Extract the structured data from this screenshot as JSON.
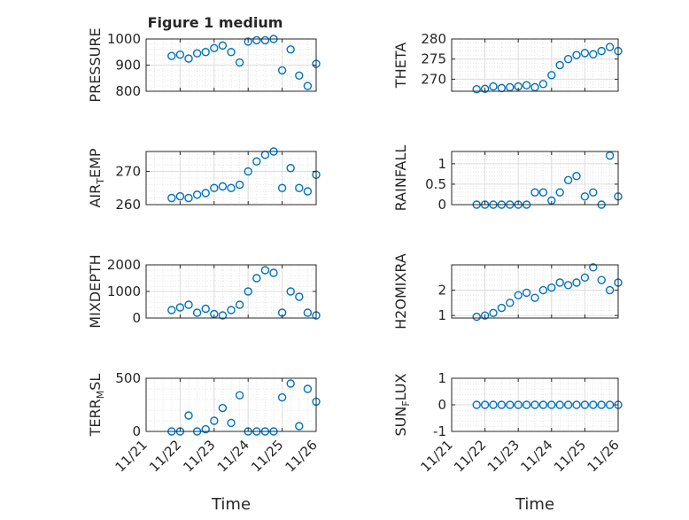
{
  "figure": {
    "title": "Figure 1 medium",
    "series_color": "#0072BD",
    "grid": "on (major and minor, dotted)",
    "x_axis_label": "Time",
    "x_axis_range": [
      "11/21",
      "11/26"
    ],
    "x_tick_labels": [
      "11/21",
      "11/22",
      "11/23",
      "11/24",
      "11/25",
      "11/26"
    ]
  },
  "chart_data": [
    {
      "type": "scatter",
      "ylabel": "PRESSURE",
      "ylim": [
        800,
        1000
      ],
      "yticks": [
        800,
        900,
        1000
      ],
      "xlim": [
        "11/21",
        "11/26"
      ],
      "x": [
        "11/21 18:00",
        "11/22 00:00",
        "11/22 06:00",
        "11/22 12:00",
        "11/22 18:00",
        "11/23 00:00",
        "11/23 06:00",
        "11/23 12:00",
        "11/23 18:00",
        "11/24 00:00",
        "11/24 06:00",
        "11/24 12:00",
        "11/24 18:00",
        "11/25 00:00",
        "11/25 06:00",
        "11/25 12:00",
        "11/25 18:00",
        "11/26 00:00"
      ],
      "y": [
        935,
        940,
        925,
        945,
        950,
        965,
        975,
        950,
        910,
        990,
        995,
        995,
        1000,
        880,
        960,
        860,
        820,
        905
      ]
    },
    {
      "type": "scatter",
      "ylabel": "THETA",
      "ylim": [
        267,
        280
      ],
      "yticks": [
        270,
        275,
        280
      ],
      "xlim": [
        "11/21",
        "11/26"
      ],
      "x": [
        "11/21 18:00",
        "11/22 00:00",
        "11/22 06:00",
        "11/22 12:00",
        "11/22 18:00",
        "11/23 00:00",
        "11/23 06:00",
        "11/23 12:00",
        "11/23 18:00",
        "11/24 00:00",
        "11/24 06:00",
        "11/24 12:00",
        "11/24 18:00",
        "11/25 00:00",
        "11/25 06:00",
        "11/25 12:00",
        "11/25 18:00",
        "11/26 00:00"
      ],
      "y": [
        267.5,
        267.6,
        268.2,
        267.8,
        268.0,
        268.2,
        268.5,
        268.0,
        268.8,
        271.0,
        273.5,
        275.0,
        276.0,
        276.5,
        276.2,
        277.0,
        278.0,
        277.0
      ]
    },
    {
      "type": "scatter",
      "ylabel": "AIR_TEMP",
      "ylim": [
        260,
        276
      ],
      "yticks": [
        260,
        270
      ],
      "xlim": [
        "11/21",
        "11/26"
      ],
      "x": [
        "11/21 18:00",
        "11/22 00:00",
        "11/22 06:00",
        "11/22 12:00",
        "11/22 18:00",
        "11/23 00:00",
        "11/23 06:00",
        "11/23 12:00",
        "11/23 18:00",
        "11/24 00:00",
        "11/24 06:00",
        "11/24 12:00",
        "11/24 18:00",
        "11/25 00:00",
        "11/25 06:00",
        "11/25 12:00",
        "11/25 18:00",
        "11/26 00:00"
      ],
      "y": [
        262,
        262.5,
        262,
        263,
        263.5,
        265,
        265.5,
        265,
        266,
        270,
        273,
        275,
        276,
        265,
        271,
        265,
        264,
        269
      ]
    },
    {
      "type": "scatter",
      "ylabel": "RAINFALL",
      "ylim": [
        0,
        1.3
      ],
      "yticks": [
        0,
        0.5,
        1
      ],
      "xlim": [
        "11/21",
        "11/26"
      ],
      "x": [
        "11/21 18:00",
        "11/22 00:00",
        "11/22 06:00",
        "11/22 12:00",
        "11/22 18:00",
        "11/23 00:00",
        "11/23 06:00",
        "11/23 12:00",
        "11/23 18:00",
        "11/24 00:00",
        "11/24 06:00",
        "11/24 12:00",
        "11/24 18:00",
        "11/25 00:00",
        "11/25 06:00",
        "11/25 12:00",
        "11/25 18:00",
        "11/26 00:00"
      ],
      "y": [
        0,
        0,
        0,
        0,
        0,
        0,
        0,
        0.3,
        0.3,
        0.1,
        0.3,
        0.6,
        0.7,
        0.2,
        0.3,
        0,
        1.2,
        0.2
      ]
    },
    {
      "type": "scatter",
      "ylabel": "MIXDEPTH",
      "ylim": [
        0,
        2000
      ],
      "yticks": [
        0,
        1000,
        2000
      ],
      "xlim": [
        "11/21",
        "11/26"
      ],
      "x": [
        "11/21 18:00",
        "11/22 00:00",
        "11/22 06:00",
        "11/22 12:00",
        "11/22 18:00",
        "11/23 00:00",
        "11/23 06:00",
        "11/23 12:00",
        "11/23 18:00",
        "11/24 00:00",
        "11/24 06:00",
        "11/24 12:00",
        "11/24 18:00",
        "11/25 00:00",
        "11/25 06:00",
        "11/25 12:00",
        "11/25 18:00",
        "11/26 00:00"
      ],
      "y": [
        300,
        400,
        500,
        200,
        350,
        150,
        100,
        300,
        500,
        1000,
        1500,
        1800,
        1700,
        200,
        1000,
        800,
        200,
        100
      ]
    },
    {
      "type": "scatter",
      "ylabel": "H2OMIXRA",
      "ylim": [
        0.9,
        3.0
      ],
      "yticks": [
        1,
        2
      ],
      "xlim": [
        "11/21",
        "11/26"
      ],
      "x": [
        "11/21 18:00",
        "11/22 00:00",
        "11/22 06:00",
        "11/22 12:00",
        "11/22 18:00",
        "11/23 00:00",
        "11/23 06:00",
        "11/23 12:00",
        "11/23 18:00",
        "11/24 00:00",
        "11/24 06:00",
        "11/24 12:00",
        "11/24 18:00",
        "11/25 00:00",
        "11/25 06:00",
        "11/25 12:00",
        "11/25 18:00",
        "11/26 00:00"
      ],
      "y": [
        0.95,
        1.0,
        1.1,
        1.3,
        1.5,
        1.8,
        1.9,
        1.7,
        2.0,
        2.1,
        2.3,
        2.2,
        2.3,
        2.5,
        2.9,
        2.4,
        2.0,
        2.3
      ]
    },
    {
      "type": "scatter",
      "ylabel": "TERR_MSL",
      "ylim": [
        0,
        500
      ],
      "yticks": [
        0,
        500
      ],
      "xlim": [
        "11/21",
        "11/26"
      ],
      "x": [
        "11/21 18:00",
        "11/22 00:00",
        "11/22 06:00",
        "11/22 12:00",
        "11/22 18:00",
        "11/23 00:00",
        "11/23 06:00",
        "11/23 12:00",
        "11/23 18:00",
        "11/24 00:00",
        "11/24 06:00",
        "11/24 12:00",
        "11/24 18:00",
        "11/25 00:00",
        "11/25 06:00",
        "11/25 12:00",
        "11/25 18:00",
        "11/26 00:00"
      ],
      "y": [
        0,
        0,
        150,
        0,
        20,
        100,
        220,
        80,
        340,
        0,
        0,
        0,
        0,
        320,
        450,
        50,
        400,
        280
      ]
    },
    {
      "type": "scatter",
      "ylabel": "SUN_FLUX",
      "ylim": [
        -1,
        1
      ],
      "yticks": [
        -1,
        0,
        1
      ],
      "xlim": [
        "11/21",
        "11/26"
      ],
      "x": [
        "11/21 18:00",
        "11/22 00:00",
        "11/22 06:00",
        "11/22 12:00",
        "11/22 18:00",
        "11/23 00:00",
        "11/23 06:00",
        "11/23 12:00",
        "11/23 18:00",
        "11/24 00:00",
        "11/24 06:00",
        "11/24 12:00",
        "11/24 18:00",
        "11/25 00:00",
        "11/25 06:00",
        "11/25 12:00",
        "11/25 18:00",
        "11/26 00:00"
      ],
      "y": [
        0,
        0,
        0,
        0,
        0,
        0,
        0,
        0,
        0,
        0,
        0,
        0,
        0,
        0,
        0,
        0,
        0,
        0
      ]
    }
  ]
}
